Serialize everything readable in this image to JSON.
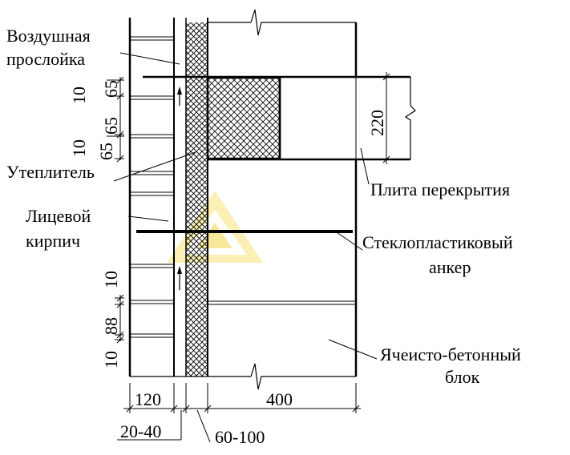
{
  "labels": {
    "air_gap_1": "Воздушная",
    "air_gap_2": "прослойка",
    "insulation": "Утеплитель",
    "facing_brick_1": "Лицевой",
    "facing_brick_2": "кирпич",
    "floor_slab": "Плита перекрытия",
    "anchor_1": "Стеклопластиковый",
    "anchor_2": "анкер",
    "aerated_block_1": "Ячеисто-бетонный",
    "aerated_block_2": "блок"
  },
  "dimensions": {
    "joint_top_a": "10",
    "course_top_a": "65",
    "course_top_b": "65",
    "joint_top_b": "10",
    "course_top_c": "65",
    "joint_bottom_a": "10",
    "course_bottom": "88",
    "joint_bottom_b": "10",
    "slab_height": "220",
    "brick_width": "120",
    "air_gap_width": "20-40",
    "insulation_width": "60-100",
    "block_width": "400"
  },
  "colors": {
    "line": "#000000",
    "watermark": "#f2d54a"
  }
}
